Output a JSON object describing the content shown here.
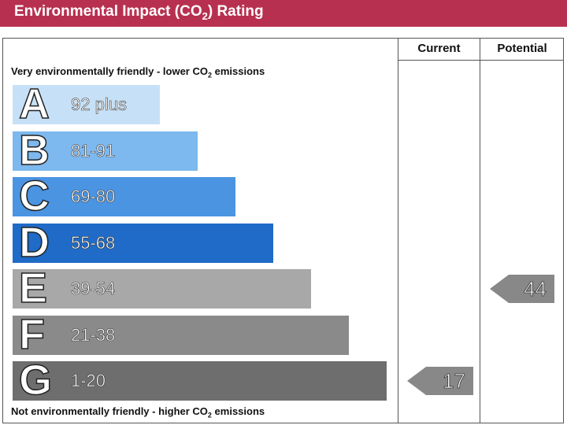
{
  "header": {
    "title": "Environmental Impact (CO",
    "sub": "2",
    "title_end": ") Rating"
  },
  "columns": {
    "current": "Current",
    "potential": "Potential"
  },
  "top_note": {
    "pre": "Very environmentally friendly - lower CO",
    "sub": "2",
    "post": " emissions"
  },
  "bottom_note": {
    "pre": "Not environmentally friendly - higher CO",
    "sub": "2",
    "post": " emissions"
  },
  "chart_data": {
    "type": "bar",
    "title": "Environmental Impact (CO2) Rating",
    "categories": [
      "A",
      "B",
      "C",
      "D",
      "E",
      "F",
      "G"
    ],
    "ranges": [
      "92 plus",
      "81-91",
      "69-80",
      "55-68",
      "39-54",
      "21-38",
      "1-20"
    ],
    "band_colors": [
      "#c6e1f7",
      "#7db8ee",
      "#4a94e2",
      "#1f6bc7",
      "#a8a8a8",
      "#8a8a8a",
      "#6e6e6e"
    ],
    "current": {
      "value": 17,
      "band": "G",
      "label": "17"
    },
    "potential": {
      "value": 44,
      "band": "E",
      "label": "44"
    }
  }
}
